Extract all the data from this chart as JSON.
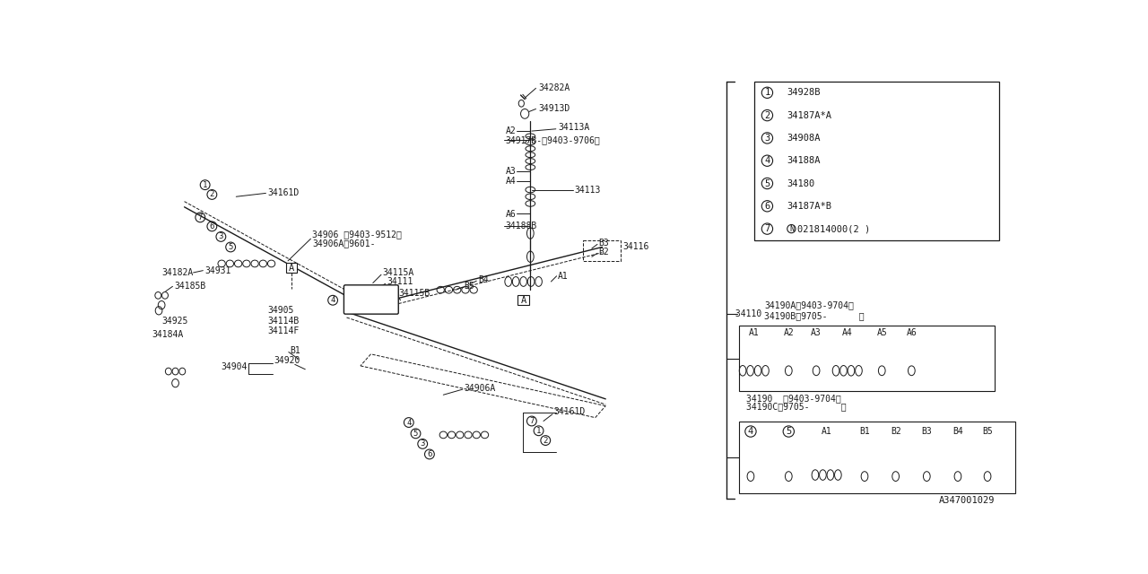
{
  "bg_color": "#ffffff",
  "line_color": "#1a1a1a",
  "diagram_id": "A347001029",
  "legend_items": [
    {
      "num": "1",
      "part": "34928B"
    },
    {
      "num": "2",
      "part": "34187A*A"
    },
    {
      "num": "3",
      "part": "34908A"
    },
    {
      "num": "4",
      "part": "34188A"
    },
    {
      "num": "5",
      "part": "34180"
    },
    {
      "num": "6",
      "part": "34187A*B"
    },
    {
      "num": "7",
      "part": "N021814000(2 )"
    }
  ],
  "ref_line1": "34190A（9403-9704）",
  "ref_line2": "34190B（9705-      ）",
  "ref_num": "-34110",
  "box1_labels": [
    "A1",
    "A2",
    "A3",
    "A4",
    "A5",
    "A6"
  ],
  "box1_part1": "34190  （9403-9704）",
  "box1_part2": "34190C（9705-      ）",
  "box2_labels": [
    "4",
    "5",
    "A1",
    "B1",
    "B2",
    "B3",
    "B4",
    "B5"
  ]
}
